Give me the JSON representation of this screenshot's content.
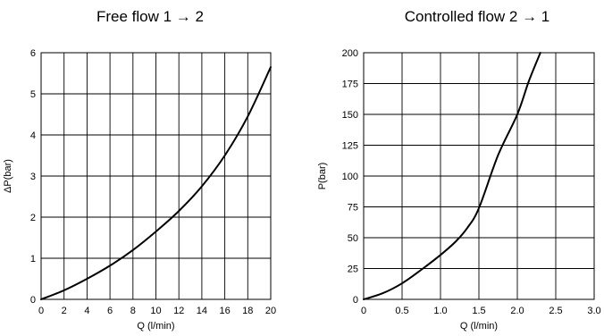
{
  "chart_data": [
    {
      "type": "line",
      "title": "Free flow  1 → 2",
      "xlabel": "Q (l/min)",
      "ylabel": "ΔP(bar)",
      "xlim": [
        0,
        20
      ],
      "ylim": [
        0,
        6
      ],
      "xticks": [
        0,
        2,
        4,
        6,
        8,
        10,
        12,
        14,
        16,
        18,
        20
      ],
      "xtick_labels": [
        "0",
        "2",
        "4",
        "6",
        "8",
        "10",
        "12",
        "14",
        "16",
        "18",
        "20"
      ],
      "yticks": [
        0,
        1,
        2,
        3,
        4,
        5,
        6
      ],
      "ytick_labels": [
        "0",
        "1",
        "2",
        "3",
        "4",
        "5",
        "6"
      ],
      "grid": true,
      "series": [
        {
          "x": [
            0,
            2,
            4,
            6,
            8,
            10,
            12,
            14,
            16,
            18,
            20
          ],
          "y": [
            0,
            0.22,
            0.5,
            0.82,
            1.2,
            1.65,
            2.15,
            2.75,
            3.5,
            4.45,
            5.65
          ]
        }
      ]
    },
    {
      "type": "line",
      "title": "Controlled flow  2 → 1",
      "xlabel": "Q (l/min)",
      "ylabel": "P(bar)",
      "xlim": [
        0,
        3.0
      ],
      "ylim": [
        0,
        200
      ],
      "xticks": [
        0,
        0.5,
        1.0,
        1.5,
        2.0,
        2.5,
        3.0
      ],
      "xtick_labels": [
        "0",
        "0.5",
        "1.0",
        "1.5",
        "2.0",
        "2.5",
        "3.0"
      ],
      "yticks": [
        0,
        25,
        50,
        75,
        100,
        125,
        150,
        175,
        200
      ],
      "ytick_labels": [
        "0",
        "25",
        "50",
        "75",
        "100",
        "125",
        "150",
        "175",
        "200"
      ],
      "grid": true,
      "series": [
        {
          "x": [
            0,
            0.25,
            0.5,
            0.75,
            1.0,
            1.2,
            1.35,
            1.5,
            1.75,
            2.0,
            2.15,
            2.3
          ],
          "y": [
            0,
            5,
            13,
            24,
            36,
            47,
            58,
            74,
            117,
            150,
            177,
            200
          ]
        }
      ]
    }
  ]
}
